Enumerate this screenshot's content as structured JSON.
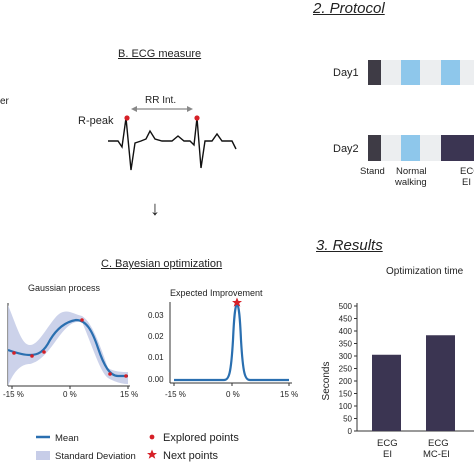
{
  "colors": {
    "stand": "#3e3b45",
    "walk": "#8ec7eb",
    "ecg": "#3b3552",
    "blue_line": "#2a6fb0",
    "band": "#c7cde8",
    "red": "#d62027",
    "bar1": "#3b3552",
    "bar2": "#3b3552"
  },
  "left_edge": {
    "text": "er"
  },
  "ecg": {
    "title": "B. ECG measure",
    "rr_label": "RR Int.",
    "rpeak_label": "R-peak"
  },
  "arrow": {
    "glyph": "↓"
  },
  "bayes": {
    "title": "C.  Bayesian optimization",
    "gp_title": "Gaussian process",
    "gp_xticks": [
      "-15 %",
      "0 %",
      "15 %"
    ],
    "ei_title": "Expected Improvement",
    "ei_yticks": [
      "0.03",
      "0.02",
      "0.01",
      "0.00"
    ],
    "ei_xticks": [
      "-15 %",
      "0 %",
      "15 %"
    ]
  },
  "legend": {
    "mean": "Mean",
    "std": "Standard Deviation",
    "explored": "Explored points",
    "next": "Next points"
  },
  "protocol": {
    "title": "2. Protocol",
    "day1": "Day1",
    "day2": "Day2",
    "label_stand": "Stand",
    "label_walk_1": "Normal",
    "label_walk_2": "walking",
    "label_ecg_1": "ECG",
    "label_ecg_2": "EI"
  },
  "results": {
    "title": "3.  Results",
    "chart_title": "Optimization time",
    "ylabel": "Seconds",
    "yticks": [
      "0",
      "50",
      "100",
      "150",
      "200",
      "250",
      "300",
      "350",
      "400",
      "450",
      "500"
    ],
    "bar1_label_1": "ECG",
    "bar1_label_2": "EI",
    "bar2_label_1": "ECG",
    "bar2_label_2": "MC-EI"
  },
  "chart_data": {
    "type": "bar",
    "title": "Optimization time",
    "ylabel": "Seconds",
    "categories": [
      "ECG EI",
      "ECG MC-EI"
    ],
    "values": [
      305,
      383
    ],
    "ylim": [
      0,
      500
    ]
  }
}
